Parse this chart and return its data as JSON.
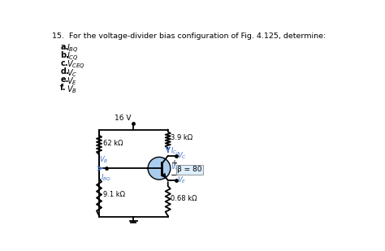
{
  "title": "15.  For the voltage-divider bias configuration of Fig. 4.125, determine:",
  "items": [
    "a. $I_{BQ}$",
    "b. $I_{CQ}$",
    "c. $V_{CEQ}$",
    "d. $V_C$",
    "e. $V_E$",
    "f. $V_B$"
  ],
  "r1_label": "62 kΩ",
  "r2_label": "9.1 kΩ",
  "rc_label": "3.9 kΩ",
  "re_label": "0.68 kΩ",
  "vcc_label": "16 V",
  "beta_label": "β = 80",
  "colors": {
    "bg": "#ffffff",
    "line": "#000000",
    "blue_text": "#4472c4",
    "trans_fill": "#aaccee",
    "trans_edge": "#000000",
    "beta_box_bg": "#ddeeff"
  },
  "lw": 1.3
}
